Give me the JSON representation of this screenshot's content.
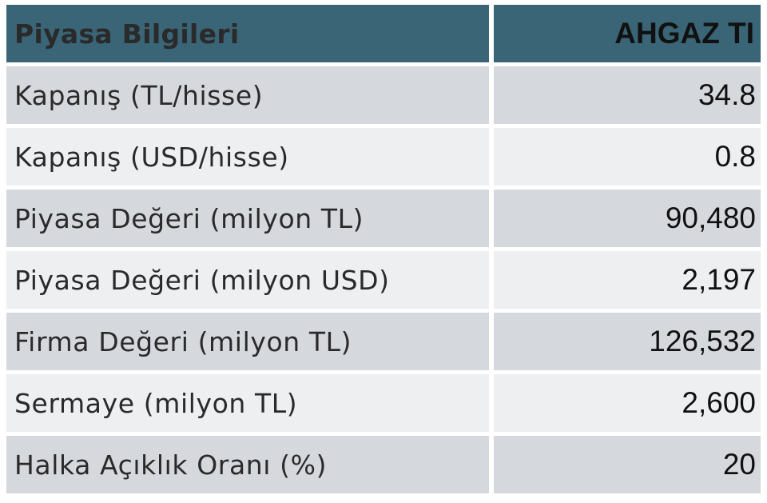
{
  "table": {
    "header": {
      "label": "Piyasa Bilgileri",
      "value": "AHGAZ TI"
    },
    "rows": [
      {
        "label": "Kapanış (TL/hisse)",
        "value": "34.8"
      },
      {
        "label": "Kapanış (USD/hisse)",
        "value": "0.8"
      },
      {
        "label": "Piyasa Değeri (milyon TL)",
        "value": "90,480"
      },
      {
        "label": "Piyasa Değeri (milyon USD)",
        "value": "2,197"
      },
      {
        "label": "Firma Değeri (milyon TL)",
        "value": "126,532"
      },
      {
        "label": "Sermaye (milyon TL)",
        "value": "2,600"
      },
      {
        "label": "Halka Açıklık Oranı (%)",
        "value": "20"
      }
    ],
    "colors": {
      "header_bg": "#3a6577",
      "row_dark": "#d5d8dd",
      "row_light": "#eeeff1"
    }
  }
}
